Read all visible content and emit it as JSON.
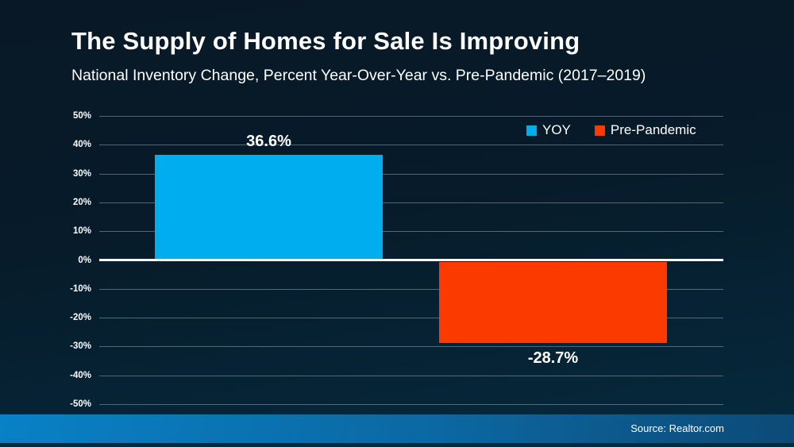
{
  "title": "The Supply of Homes for Sale Is Improving",
  "subtitle": "National Inventory Change, Percent Year-Over-Year vs. Pre-Pandemic (2017–2019)",
  "footer": {
    "source_label": "Source: Realtor.com"
  },
  "colors": {
    "yoy_bar": "#00ADEF",
    "pre_pandemic_bar": "#FB3A00",
    "zero_line": "#FFFFFF",
    "background_top": "#081826",
    "background_bottom": "#052A3E",
    "footer_left": "#0981C6",
    "footer_right": "#0D4A77"
  },
  "chart_data": {
    "type": "bar",
    "title": "The Supply of Homes for Sale Is Improving",
    "subtitle": "National Inventory Change, Percent Year-Over-Year vs. Pre-Pandemic (2017–2019)",
    "series": [
      {
        "name": "YOY",
        "value": 36.6,
        "label": "36.6%",
        "color": "#00ADEF"
      },
      {
        "name": "Pre-Pandemic",
        "value": -28.7,
        "label": "-28.7%",
        "color": "#FB3A00"
      }
    ],
    "y_axis": {
      "min": -50,
      "max": 50,
      "tick_step": 10,
      "format": "percent",
      "ticks": [
        {
          "value": 50,
          "label": "50%"
        },
        {
          "value": 40,
          "label": "40%"
        },
        {
          "value": 30,
          "label": "30%"
        },
        {
          "value": 20,
          "label": "20%"
        },
        {
          "value": 10,
          "label": "10%"
        },
        {
          "value": 0,
          "label": "0%"
        },
        {
          "value": -10,
          "label": "-10%"
        },
        {
          "value": -20,
          "label": "-20%"
        },
        {
          "value": -30,
          "label": "-30%"
        },
        {
          "value": -40,
          "label": "-40%"
        },
        {
          "value": -50,
          "label": "-50%"
        }
      ]
    },
    "grid": true,
    "legend_position": "top-right",
    "source": "Source: Realtor.com"
  }
}
